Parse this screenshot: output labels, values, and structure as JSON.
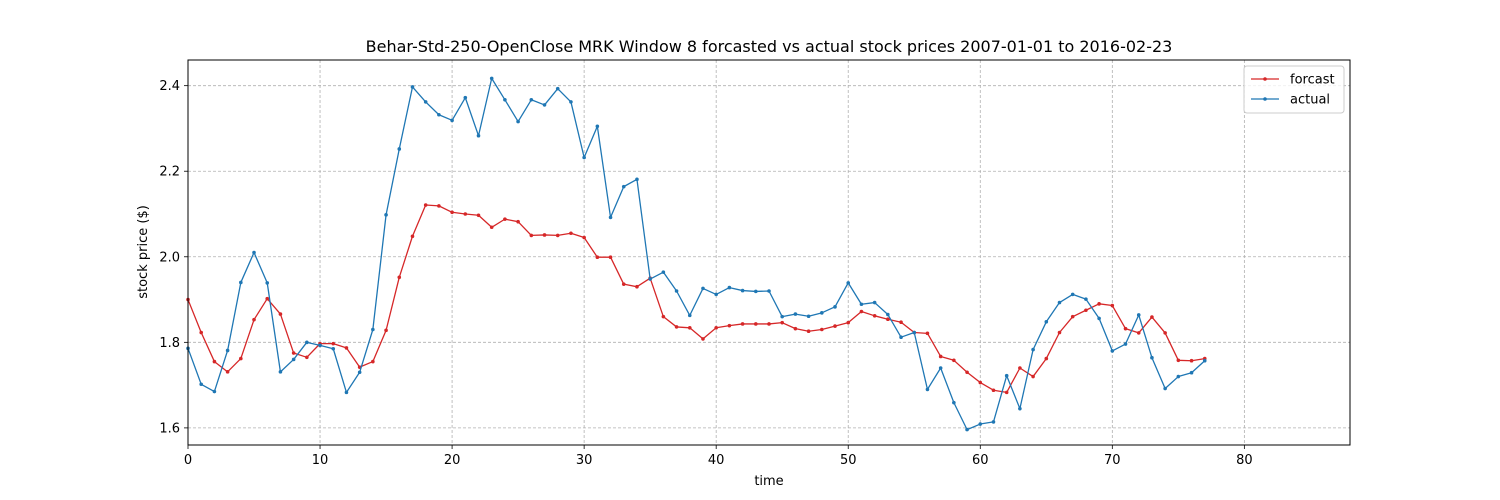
{
  "chart_data": {
    "type": "line",
    "title": "Behar-Std-250-OpenClose MRK Window 8 forcasted vs actual stock prices 2007-01-01 to 2016-02-23",
    "xlabel": "time",
    "ylabel": "stock price ($)",
    "xlim": [
      0,
      88
    ],
    "ylim": [
      1.56,
      2.46
    ],
    "xticks": [
      0,
      10,
      20,
      30,
      40,
      50,
      60,
      70,
      80
    ],
    "yticks": [
      1.6,
      1.8,
      2.0,
      2.2,
      2.4
    ],
    "ytick_labels": [
      "1.6",
      "1.8",
      "2.0",
      "2.2",
      "2.4"
    ],
    "grid": true,
    "legend_position": "top-right",
    "series": [
      {
        "name": "forcast",
        "color": "#d62728",
        "values": [
          1.9,
          1.823,
          1.755,
          1.731,
          1.762,
          1.853,
          1.902,
          1.866,
          1.775,
          1.765,
          1.797,
          1.797,
          1.787,
          1.742,
          1.755,
          1.828,
          1.952,
          2.048,
          2.121,
          2.119,
          2.104,
          2.1,
          2.097,
          2.069,
          2.088,
          2.082,
          2.05,
          2.051,
          2.05,
          2.055,
          2.045,
          1.999,
          1.999,
          1.936,
          1.93,
          1.95,
          1.86,
          1.836,
          1.834,
          1.808,
          1.834,
          1.839,
          1.843,
          1.843,
          1.843,
          1.846,
          1.832,
          1.826,
          1.83,
          1.838,
          1.846,
          1.872,
          1.862,
          1.854,
          1.847,
          1.823,
          1.821,
          1.767,
          1.758,
          1.73,
          1.706,
          1.688,
          1.683,
          1.74,
          1.72,
          1.762,
          1.823,
          1.86,
          1.875,
          1.89,
          1.886,
          1.832,
          1.822,
          1.859,
          1.822,
          1.758,
          1.757,
          1.762
        ]
      },
      {
        "name": "actual",
        "color": "#1f77b4",
        "values": [
          1.786,
          1.702,
          1.685,
          1.781,
          1.94,
          2.01,
          1.939,
          1.731,
          1.76,
          1.8,
          1.793,
          1.785,
          1.683,
          1.73,
          1.83,
          2.098,
          2.252,
          2.397,
          2.362,
          2.332,
          2.319,
          2.372,
          2.283,
          2.417,
          2.367,
          2.316,
          2.367,
          2.355,
          2.393,
          2.362,
          2.232,
          2.305,
          2.092,
          2.164,
          2.181,
          1.948,
          1.964,
          1.92,
          1.863,
          1.926,
          1.912,
          1.928,
          1.921,
          1.919,
          1.92,
          1.86,
          1.866,
          1.861,
          1.869,
          1.883,
          1.939,
          1.889,
          1.893,
          1.865,
          1.812,
          1.823,
          1.69,
          1.74,
          1.659,
          1.596,
          1.609,
          1.614,
          1.722,
          1.645,
          1.783,
          1.848,
          1.893,
          1.912,
          1.901,
          1.856,
          1.78,
          1.796,
          1.864,
          1.764,
          1.692,
          1.72,
          1.729,
          1.757
        ]
      }
    ]
  }
}
